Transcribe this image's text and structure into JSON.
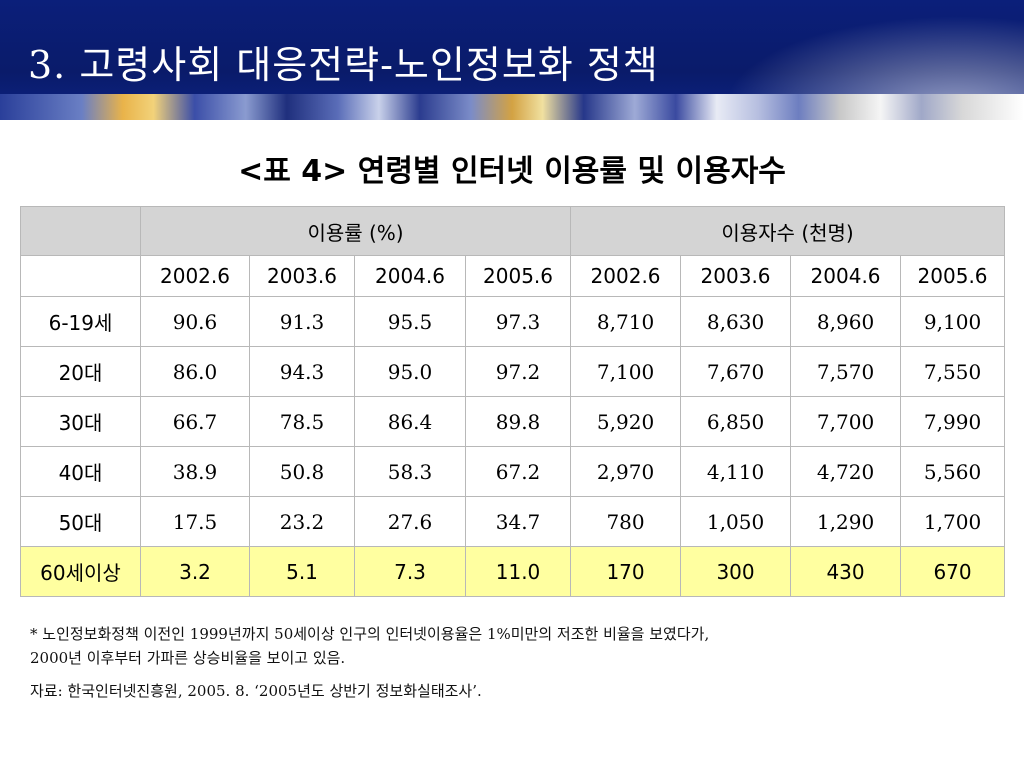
{
  "slide": {
    "title": "3. 고령사회 대응전략-노인정보화 정책",
    "table_title": "<표 4> 연령별 인터넷 이용률 및 이용자수",
    "highlight_color": "#ffffa0",
    "header_color": "#0b1f7a"
  },
  "table": {
    "group_headers": [
      "이용률 (%)",
      "이용자수 (천명)"
    ],
    "years": [
      "2002.6",
      "2003.6",
      "2004.6",
      "2005.6",
      "2002.6",
      "2003.6",
      "2004.6",
      "2005.6"
    ],
    "rows": [
      {
        "label": "6-19세",
        "values": [
          "90.6",
          "91.3",
          "95.5",
          "97.3",
          "8,710",
          "8,630",
          "8,960",
          "9,100"
        ]
      },
      {
        "label": "20대",
        "values": [
          "86.0",
          "94.3",
          "95.0",
          "97.2",
          "7,100",
          "7,670",
          "7,570",
          "7,550"
        ]
      },
      {
        "label": "30대",
        "values": [
          "66.7",
          "78.5",
          "86.4",
          "89.8",
          "5,920",
          "6,850",
          "7,700",
          "7,990"
        ]
      },
      {
        "label": "40대",
        "values": [
          "38.9",
          "50.8",
          "58.3",
          "67.2",
          "2,970",
          "4,110",
          "4,720",
          "5,560"
        ]
      },
      {
        "label": "50대",
        "values": [
          "17.5",
          "23.2",
          "27.6",
          "34.7",
          "780",
          "1,050",
          "1,290",
          "1,700"
        ]
      },
      {
        "label": "60세이상",
        "values": [
          "3.2",
          "5.1",
          "7.3",
          "11.0",
          "170",
          "300",
          "430",
          "670"
        ]
      }
    ]
  },
  "notes": {
    "line1": "* 노인정보화정책 이전인 1999년까지 50세이상 인구의 인터넷이용율은 1%미만의 저조한 비율을 보였다가,",
    "line2": "2000년 이후부터 가파른 상승비율을 보이고 있음.",
    "source": "자료: 한국인터넷진흥원, 2005. 8. ‘2005년도 상반기 정보화실태조사’."
  }
}
